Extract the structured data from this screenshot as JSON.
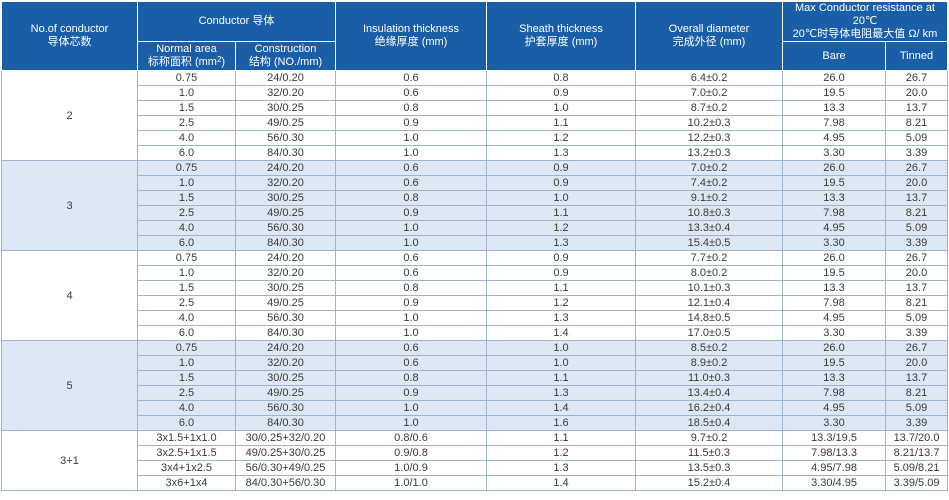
{
  "header": {
    "no_conductor": {
      "en": "No.of conductor",
      "cn": "导体芯数"
    },
    "conductor": "Conductor 导体",
    "normal_area": {
      "en": "Normal area",
      "cn": "标称面积 (mm",
      "sup": "2",
      "end": ")"
    },
    "construction": {
      "en": "Construction",
      "cn": "结构 (NO./mm)"
    },
    "insulation": {
      "en": "Insulation thickness",
      "cn": "绝缘厚度 (mm)"
    },
    "sheath": {
      "en": "Sheath thickness",
      "cn": "护套厚度 (mm)"
    },
    "overall": {
      "en": "Overall diameter",
      "cn": "完成外径 (mm)"
    },
    "resistance": {
      "en": "Max Conductor resistance at 20℃",
      "cn": "20℃时导体电阻最大值 Ω/ km"
    },
    "bare": "Bare",
    "tinned": "Tinned"
  },
  "groups": [
    {
      "label": "2",
      "rows": [
        [
          "0.75",
          "24/0.20",
          "0.6",
          "0.8",
          "6.4±0.2",
          "26.0",
          "26.7"
        ],
        [
          "1.0",
          "32/0.20",
          "0.6",
          "0.9",
          "7.0±0.2",
          "19.5",
          "20.0"
        ],
        [
          "1.5",
          "30/0.25",
          "0.8",
          "1.0",
          "8.7±0.2",
          "13.3",
          "13.7"
        ],
        [
          "2.5",
          "49/0.25",
          "0.9",
          "1.1",
          "10.2±0.3",
          "7.98",
          "8.21"
        ],
        [
          "4.0",
          "56/0.30",
          "1.0",
          "1.2",
          "12.2±0.3",
          "4.95",
          "5.09"
        ],
        [
          "6.0",
          "84/0.30",
          "1.0",
          "1.3",
          "13.2±0.3",
          "3.30",
          "3.39"
        ]
      ]
    },
    {
      "label": "3",
      "rows": [
        [
          "0.75",
          "24/0.20",
          "0.6",
          "0.9",
          "7.0±0.2",
          "26.0",
          "26.7"
        ],
        [
          "1.0",
          "32/0.20",
          "0.6",
          "0.9",
          "7.4±0.2",
          "19.5",
          "20.0"
        ],
        [
          "1.5",
          "30/0.25",
          "0.8",
          "1.0",
          "9.1±0.2",
          "13.3",
          "13.7"
        ],
        [
          "2.5",
          "49/0.25",
          "0.9",
          "1.1",
          "10.8±0.3",
          "7.98",
          "8.21"
        ],
        [
          "4.0",
          "56/0.30",
          "1.0",
          "1.2",
          "13.3±0.4",
          "4.95",
          "5.09"
        ],
        [
          "6.0",
          "84/0.30",
          "1.0",
          "1.3",
          "15.4±0.5",
          "3.30",
          "3.39"
        ]
      ]
    },
    {
      "label": "4",
      "rows": [
        [
          "0.75",
          "24/0.20",
          "0.6",
          "0.9",
          "7.7±0.2",
          "26.0",
          "26.7"
        ],
        [
          "1.0",
          "32/0.20",
          "0.6",
          "0.9",
          "8.0±0.2",
          "19.5",
          "20.0"
        ],
        [
          "1.5",
          "30/0.25",
          "0.8",
          "1.1",
          "10.1±0.3",
          "13.3",
          "13.7"
        ],
        [
          "2.5",
          "49/0.25",
          "0.9",
          "1.2",
          "12.1±0.4",
          "7.98",
          "8.21"
        ],
        [
          "4.0",
          "56/0.30",
          "1.0",
          "1.3",
          "14.8±0.5",
          "4.95",
          "5.09"
        ],
        [
          "6.0",
          "84/0.30",
          "1.0",
          "1.4",
          "17.0±0.5",
          "3.30",
          "3.39"
        ]
      ]
    },
    {
      "label": "5",
      "rows": [
        [
          "0.75",
          "24/0.20",
          "0.6",
          "1.0",
          "8.5±0.2",
          "26.0",
          "26.7"
        ],
        [
          "1.0",
          "32/0.20",
          "0.6",
          "1.0",
          "8.9±0.2",
          "19.5",
          "20.0"
        ],
        [
          "1.5",
          "30/0.25",
          "0.8",
          "1.1",
          "11.0±0.3",
          "13.3",
          "13.7"
        ],
        [
          "2.5",
          "49/0.25",
          "0.9",
          "1.3",
          "13.4±0.4",
          "7.98",
          "8.21"
        ],
        [
          "4.0",
          "56/0.30",
          "1.0",
          "1.4",
          "16.2±0.4",
          "4.95",
          "5.09"
        ],
        [
          "6.0",
          "84/0.30",
          "1.0",
          "1.6",
          "18.5±0.4",
          "3.30",
          "3.39"
        ]
      ]
    },
    {
      "label": "3+1",
      "rows": [
        [
          "3x1.5+1x1.0",
          "30/0.25+32/0.20",
          "0.8/0.6",
          "1.1",
          "9.7±0.2",
          "13.3/19.5",
          "13.7/20.0"
        ],
        [
          "3x2.5+1x1.5",
          "49/0.25+30/0.25",
          "0.9/0.8",
          "1.2",
          "11.5±0.3",
          "7.98/13.3",
          "8.21/13.7"
        ],
        [
          "3x4+1x2.5",
          "56/0.30+49/0.25",
          "1.0/0.9",
          "1.3",
          "13.5±0.3",
          "4.95/7.98",
          "5.09/8.21"
        ],
        [
          "3x6+1x4",
          "84/0.30+56/0.30",
          "1.0/1.0",
          "1.4",
          "15.2±0.4",
          "3.30/4.95",
          "3.39/5.09"
        ]
      ]
    }
  ],
  "colors": {
    "header_bg": "#1b5ea8",
    "shaded_group_bg": "#dde8f4",
    "border": "#9eb4cc"
  }
}
